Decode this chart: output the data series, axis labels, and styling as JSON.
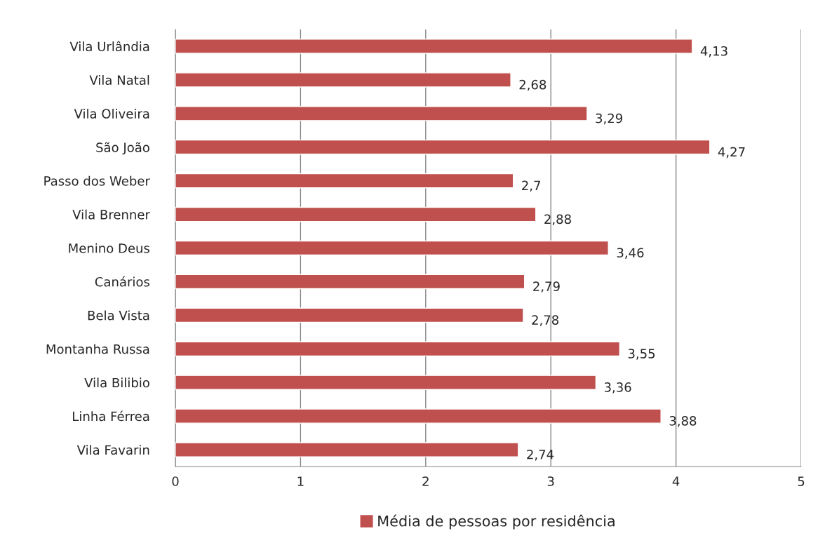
{
  "chart_data": {
    "type": "bar",
    "orientation": "horizontal",
    "categories": [
      "Vila Urlândia",
      "Vila Natal",
      "Vila Oliveira",
      "São João",
      "Passo dos Weber",
      "Vila Brenner",
      "Menino Deus",
      "Canários",
      "Bela Vista",
      "Montanha Russa",
      "Vila Bilibio",
      "Linha Férrea",
      "Vila Favarin"
    ],
    "series": [
      {
        "name": "Média de pessoas por residência",
        "color": "#c0504d",
        "values": [
          4.13,
          2.68,
          3.29,
          4.27,
          2.7,
          2.88,
          3.46,
          2.79,
          2.78,
          3.55,
          3.36,
          3.88,
          2.74
        ],
        "value_labels": [
          "4,13",
          "2,68",
          "3,29",
          "4,27",
          "2,7",
          "2,88",
          "3,46",
          "2,79",
          "2,78",
          "3,55",
          "3,36",
          "3,88",
          "2,74"
        ]
      }
    ],
    "xlim": [
      0,
      5
    ],
    "xticks": [
      0,
      1,
      2,
      3,
      4,
      5
    ],
    "grid": "x",
    "legend": "bottom"
  }
}
